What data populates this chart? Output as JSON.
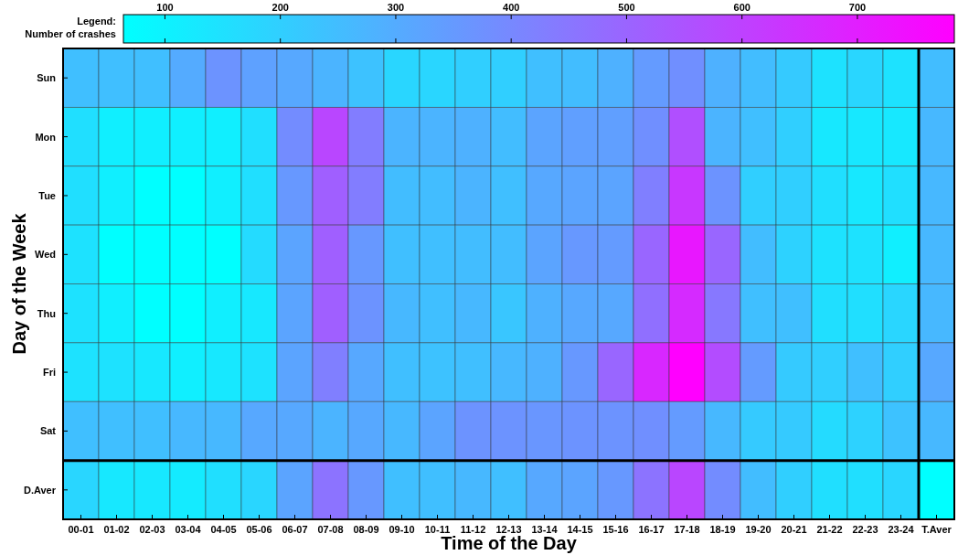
{
  "chart_data": {
    "type": "heatmap",
    "xlabel": "Time of the Day",
    "ylabel": "Day of the Week",
    "clabel": "Legend:\nNumber of crashes",
    "categories": [
      "00-01",
      "01-02",
      "02-03",
      "03-04",
      "04-05",
      "05-06",
      "06-07",
      "07-08",
      "08-09",
      "09-10",
      "10-11",
      "11-12",
      "12-13",
      "13-14",
      "14-15",
      "15-16",
      "16-17",
      "17-18",
      "18-19",
      "19-20",
      "20-21",
      "21-22",
      "22-23",
      "23-24",
      "T.Aver"
    ],
    "y_categories": [
      "Sun",
      "Mon",
      "Tue",
      "Wed",
      "Thu",
      "Fri",
      "Sat",
      "D.Aver"
    ],
    "cells": [
      [
        245,
        245,
        245,
        300,
        370,
        330,
        310,
        275,
        235,
        180,
        180,
        200,
        200,
        245,
        250,
        285,
        345,
        380,
        285,
        250,
        215,
        145,
        180,
        145,
        250
      ],
      [
        155,
        110,
        110,
        110,
        110,
        155,
        390,
        585,
        430,
        275,
        275,
        285,
        250,
        320,
        335,
        335,
        380,
        560,
        275,
        245,
        200,
        130,
        130,
        130,
        265
      ],
      [
        155,
        110,
        64,
        64,
        110,
        155,
        355,
        515,
        430,
        250,
        250,
        275,
        245,
        310,
        320,
        320,
        425,
        630,
        370,
        200,
        200,
        155,
        130,
        155,
        265
      ],
      [
        145,
        64,
        64,
        64,
        64,
        165,
        320,
        515,
        355,
        245,
        245,
        250,
        250,
        320,
        355,
        345,
        495,
        720,
        495,
        250,
        190,
        145,
        145,
        110,
        265
      ],
      [
        145,
        110,
        64,
        64,
        110,
        130,
        320,
        515,
        370,
        265,
        245,
        265,
        225,
        285,
        310,
        310,
        470,
        665,
        445,
        245,
        245,
        155,
        155,
        180,
        265
      ],
      [
        145,
        145,
        130,
        110,
        130,
        145,
        320,
        425,
        310,
        245,
        235,
        245,
        265,
        285,
        355,
        495,
        675,
        784,
        570,
        345,
        215,
        200,
        245,
        200,
        310
      ],
      [
        245,
        245,
        245,
        265,
        265,
        310,
        310,
        275,
        310,
        265,
        320,
        370,
        370,
        360,
        370,
        370,
        380,
        345,
        265,
        215,
        215,
        165,
        190,
        235,
        265
      ],
      [
        180,
        130,
        130,
        120,
        155,
        180,
        320,
        460,
        355,
        245,
        245,
        265,
        245,
        310,
        320,
        355,
        460,
        585,
        390,
        250,
        200,
        155,
        155,
        180,
        64
      ]
    ],
    "clim": [
      64,
      784
    ],
    "cticks": [
      100,
      200,
      300,
      400,
      500,
      600,
      700
    ]
  }
}
